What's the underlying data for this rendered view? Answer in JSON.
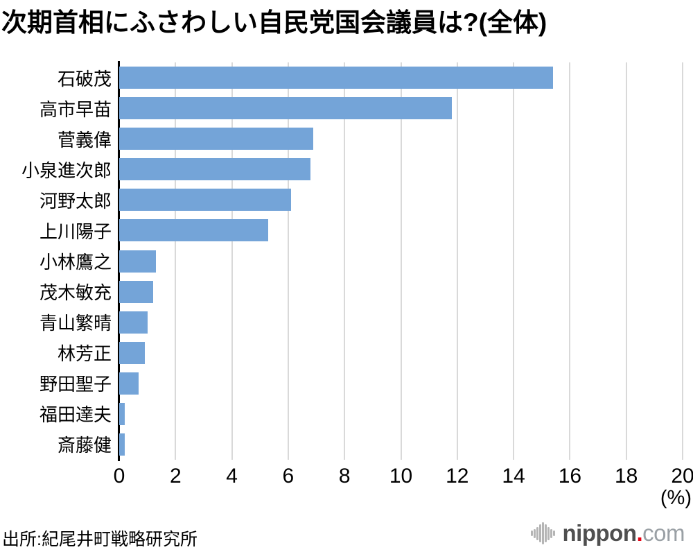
{
  "chart_data": {
    "type": "bar",
    "orientation": "horizontal",
    "title": "次期首相にふさわしい自民党国会議員は?(全体)",
    "categories": [
      "石破茂",
      "高市早苗",
      "菅義偉",
      "小泉進次郎",
      "河野太郎",
      "上川陽子",
      "小林鷹之",
      "茂木敏充",
      "青山繁晴",
      "林芳正",
      "野田聖子",
      "福田達夫",
      "斎藤健"
    ],
    "values": [
      15.4,
      11.8,
      6.9,
      6.8,
      6.1,
      5.3,
      1.3,
      1.2,
      1.0,
      0.9,
      0.7,
      0.2,
      0.2
    ],
    "xlabel": "(%)",
    "xlim": [
      0,
      20
    ],
    "xticks": [
      0,
      2,
      4,
      6,
      8,
      10,
      12,
      14,
      16,
      18,
      20
    ],
    "grid": true,
    "legend": "none",
    "bar_color": "#74a4d8",
    "gridline_color": "#d9d9d9",
    "axis_color": "#000000"
  },
  "footer": {
    "source": "出所:紀尾井町戦略研究所",
    "logo": {
      "icon": "waveform-icon",
      "brand_bold": "nippon",
      "brand_dot": ".",
      "brand_light": "com",
      "dot_color": "#e60012",
      "wave_heights": [
        8,
        13,
        19,
        26,
        32,
        26,
        19,
        13,
        8
      ]
    }
  }
}
